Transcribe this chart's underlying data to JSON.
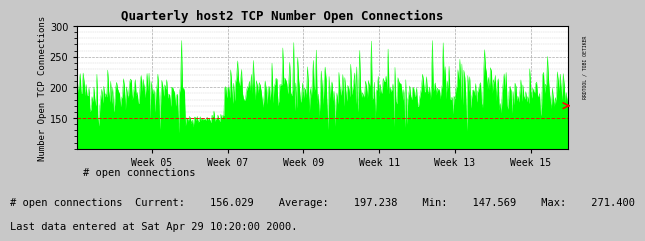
{
  "title": "Quarterly host2 TCP Number Open Connections",
  "ylabel": "Number Open TCP Connections",
  "right_label": "RRDTOOL / TOBI OETIKER",
  "bg_color": "#c8c8c8",
  "plot_bg_color": "#ffffff",
  "grid_color": "#aaaaaa",
  "line_color": "#00ff00",
  "fill_color": "#00ff00",
  "dashed_line_color": "#ff0000",
  "ylim_min": 100,
  "ylim_max": 300,
  "yticks": [
    150,
    200,
    250,
    300
  ],
  "week_labels": [
    "Week 05",
    "Week 07",
    "Week 09",
    "Week 11",
    "Week 13",
    "Week 15"
  ],
  "legend_label": "# open connections",
  "stats_line": "# open connections  Current:    156.029    Average:    197.238    Min:    147.569    Max:    271.400",
  "last_data_line": "Last data entered at Sat Apr 29 10:20:00 2000.",
  "current": 156.029,
  "average": 197.238,
  "min_val": 147.569,
  "max_val": 271.4,
  "n_points": 500,
  "seed": 42,
  "week_offsets": [
    2,
    4,
    6,
    8,
    10,
    12
  ],
  "n_weeks_total": 13
}
